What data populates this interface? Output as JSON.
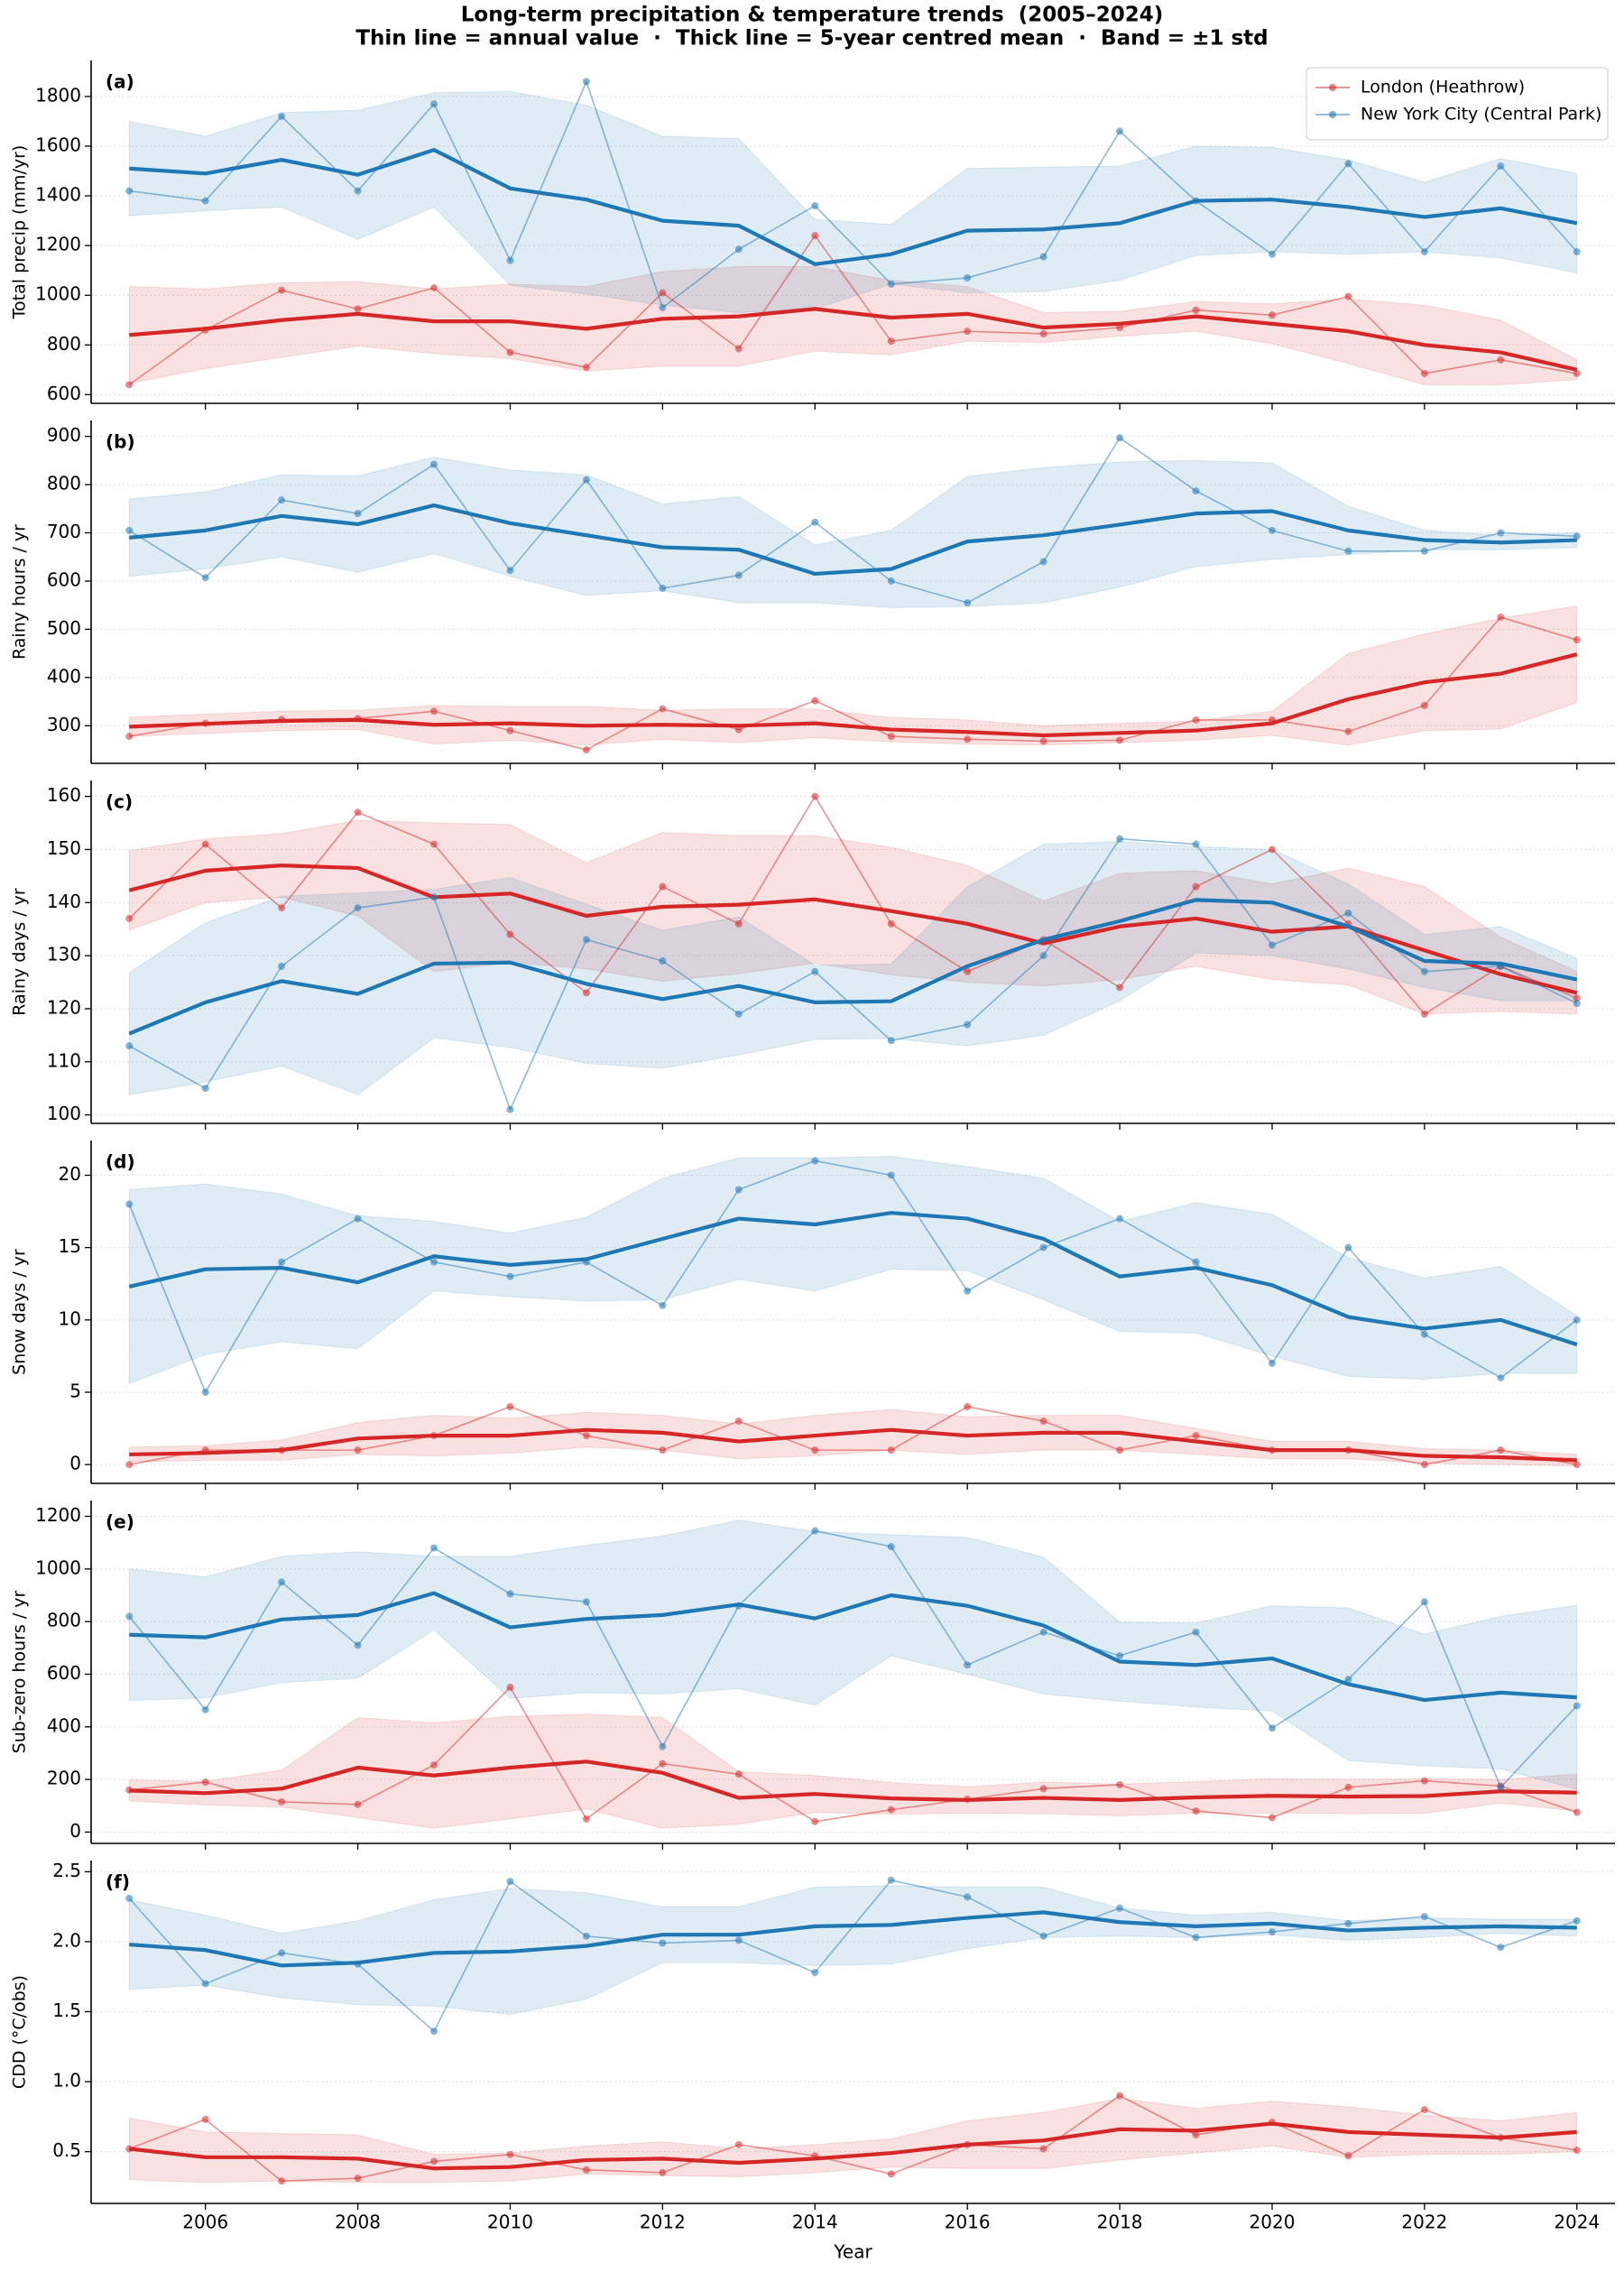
{
  "title": "Long-term precipitation & temperature trends  (2005–2024)",
  "subtitle": "Thin line = annual value  ·  Thick line = 5-year centred mean  ·  Band = ±1 std",
  "chart_data": [
    {
      "type": "line",
      "panel_label": "(a)",
      "ylabel": "Total precip (mm/yr)",
      "legend": "upper right",
      "grid": true,
      "xticklabels": false,
      "x": [
        2005,
        2006,
        2007,
        2008,
        2009,
        2010,
        2011,
        2012,
        2013,
        2014,
        2015,
        2016,
        2017,
        2018,
        2019,
        2020,
        2021,
        2022,
        2023,
        2024
      ],
      "xlim": [
        2004.5,
        2024.5
      ],
      "xticks": [
        2006,
        2008,
        2010,
        2012,
        2014,
        2016,
        2018,
        2020,
        2022,
        2024
      ],
      "ylim": [
        565,
        1945
      ],
      "yticks": [
        600,
        800,
        1000,
        1200,
        1400,
        1600,
        1800
      ],
      "series": [
        {
          "name": "London (Heathrow)",
          "color": "#d62728",
          "values": [
            640,
            860,
            1020,
            945,
            1030,
            770,
            710,
            1010,
            785,
            1240,
            815,
            855,
            845,
            870,
            940,
            920,
            995,
            685,
            740,
            685
          ],
          "mean": [
            840,
            865,
            900,
            925,
            895,
            895,
            865,
            905,
            915,
            945,
            910,
            925,
            870,
            885,
            915,
            885,
            855,
            800,
            770,
            700
          ],
          "std": [
            195,
            160,
            150,
            130,
            130,
            150,
            170,
            190,
            200,
            170,
            150,
            110,
            60,
            50,
            60,
            80,
            130,
            160,
            130,
            40
          ]
        },
        {
          "name": "New York City (Central Park)",
          "color": "#1f77b4",
          "values": [
            1420,
            1380,
            1720,
            1420,
            1770,
            1140,
            1860,
            950,
            1185,
            1360,
            1045,
            1070,
            1155,
            1660,
            1380,
            1165,
            1530,
            1175,
            1520,
            1175
          ],
          "mean": [
            1510,
            1490,
            1545,
            1485,
            1585,
            1430,
            1385,
            1300,
            1280,
            1125,
            1165,
            1260,
            1265,
            1290,
            1380,
            1385,
            1355,
            1315,
            1350,
            1290
          ],
          "std": [
            190,
            150,
            190,
            260,
            230,
            390,
            380,
            340,
            350,
            180,
            120,
            250,
            250,
            230,
            220,
            210,
            190,
            140,
            200,
            200
          ]
        }
      ]
    },
    {
      "type": "line",
      "panel_label": "(b)",
      "ylabel": "Rainy hours / yr",
      "grid": true,
      "xticklabels": false,
      "x": [
        2005,
        2006,
        2007,
        2008,
        2009,
        2010,
        2011,
        2012,
        2013,
        2014,
        2015,
        2016,
        2017,
        2018,
        2019,
        2020,
        2021,
        2022,
        2023,
        2024
      ],
      "xlim": [
        2004.5,
        2024.5
      ],
      "xticks": [
        2006,
        2008,
        2010,
        2012,
        2014,
        2016,
        2018,
        2020,
        2022,
        2024
      ],
      "ylim": [
        222,
        933
      ],
      "yticks": [
        300,
        400,
        500,
        600,
        700,
        800,
        900
      ],
      "series": [
        {
          "color": "#d62728",
          "values": [
            278,
            305,
            313,
            315,
            330,
            290,
            250,
            335,
            292,
            352,
            278,
            272,
            268,
            270,
            312,
            312,
            288,
            342,
            525,
            478
          ],
          "mean": [
            298,
            304,
            310,
            312,
            302,
            305,
            300,
            302,
            300,
            305,
            292,
            287,
            280,
            285,
            290,
            305,
            355,
            390,
            408,
            448
          ],
          "std": [
            20,
            20,
            20,
            20,
            40,
            35,
            40,
            30,
            35,
            30,
            25,
            25,
            20,
            20,
            20,
            25,
            95,
            100,
            115,
            100
          ]
        },
        {
          "color": "#1f77b4",
          "values": [
            705,
            607,
            768,
            740,
            842,
            622,
            810,
            585,
            612,
            722,
            600,
            555,
            640,
            897,
            787,
            705,
            662,
            662,
            700,
            693
          ],
          "mean": [
            690,
            705,
            735,
            718,
            757,
            720,
            695,
            670,
            665,
            615,
            625,
            682,
            695,
            717,
            740,
            745,
            705,
            685,
            680,
            685
          ],
          "std": [
            80,
            80,
            85,
            100,
            100,
            110,
            125,
            90,
            110,
            60,
            80,
            135,
            140,
            130,
            110,
            100,
            50,
            20,
            15,
            15
          ]
        }
      ]
    },
    {
      "type": "line",
      "panel_label": "(c)",
      "ylabel": "Rainy days / yr",
      "grid": true,
      "xticklabels": false,
      "x": [
        2005,
        2006,
        2007,
        2008,
        2009,
        2010,
        2011,
        2012,
        2013,
        2014,
        2015,
        2016,
        2017,
        2018,
        2019,
        2020,
        2021,
        2022,
        2023,
        2024
      ],
      "xlim": [
        2004.5,
        2024.5
      ],
      "xticks": [
        2006,
        2008,
        2010,
        2012,
        2014,
        2016,
        2018,
        2020,
        2022,
        2024
      ],
      "ylim": [
        98.4,
        163
      ],
      "yticks": [
        100,
        110,
        120,
        130,
        140,
        150,
        160
      ],
      "series": [
        {
          "color": "#d62728",
          "values": [
            137,
            151,
            139,
            157,
            151,
            134,
            123,
            143,
            136,
            160,
            136,
            127,
            133,
            124,
            143,
            150,
            136,
            119,
            128,
            122
          ],
          "mean": [
            142.3,
            146,
            147,
            146.5,
            141,
            141.7,
            137.5,
            139.2,
            139.6,
            140.6,
            138.4,
            136,
            132.3,
            135.5,
            137,
            134.5,
            135.5,
            131,
            126.5,
            123
          ],
          "std": [
            7.5,
            6,
            6,
            9,
            14,
            13,
            10,
            14,
            13,
            12,
            12,
            11,
            8,
            10,
            9,
            9,
            11,
            12,
            7,
            4
          ]
        },
        {
          "color": "#1f77b4",
          "values": [
            113,
            105,
            128,
            139,
            141,
            101,
            133,
            129,
            119,
            127,
            114,
            117,
            130,
            152,
            151,
            132,
            138,
            127,
            128,
            121
          ],
          "mean": [
            115.3,
            121.2,
            125.2,
            122.8,
            128.5,
            128.7,
            124.7,
            121.8,
            124.3,
            121.2,
            121.4,
            128,
            133,
            136.5,
            140.5,
            140,
            135.5,
            129,
            128.5,
            125.5
          ],
          "std": [
            11.5,
            15,
            16,
            19,
            14,
            16,
            15,
            13,
            13,
            7,
            7,
            15,
            18,
            15,
            10,
            10,
            8,
            5,
            7,
            4
          ]
        }
      ]
    },
    {
      "type": "line",
      "panel_label": "(d)",
      "ylabel": "Snow days / yr",
      "grid": true,
      "xticklabels": false,
      "x": [
        2005,
        2006,
        2007,
        2008,
        2009,
        2010,
        2011,
        2012,
        2013,
        2014,
        2015,
        2016,
        2017,
        2018,
        2019,
        2020,
        2021,
        2022,
        2023,
        2024
      ],
      "xlim": [
        2004.5,
        2024.5
      ],
      "xticks": [
        2006,
        2008,
        2010,
        2012,
        2014,
        2016,
        2018,
        2020,
        2022,
        2024
      ],
      "ylim": [
        -1.3,
        22.4
      ],
      "yticks": [
        0,
        5,
        10,
        15,
        20
      ],
      "series": [
        {
          "color": "#d62728",
          "values": [
            0,
            1,
            1,
            1,
            2,
            4,
            2,
            1,
            3,
            1,
            1,
            4,
            3,
            1,
            2,
            1,
            1,
            0,
            1,
            0
          ],
          "mean": [
            0.7,
            0.8,
            1,
            1.8,
            2,
            2,
            2.4,
            2.2,
            1.6,
            2,
            2.4,
            2,
            2.2,
            2.2,
            1.6,
            1,
            1,
            0.6,
            0.5,
            0.3
          ],
          "std": [
            0.5,
            0.5,
            0.7,
            1.1,
            1.4,
            1.2,
            1.2,
            1.2,
            1.2,
            1.4,
            1.4,
            1.3,
            1.2,
            1.2,
            0.9,
            0.6,
            0.6,
            0.5,
            0.5,
            0.4
          ]
        },
        {
          "color": "#1f77b4",
          "values": [
            18,
            5,
            14,
            17,
            14,
            13,
            14,
            11,
            19,
            21,
            20,
            12,
            15,
            17,
            14,
            7,
            15,
            9,
            6,
            10
          ],
          "mean": [
            12.3,
            13.5,
            13.6,
            12.6,
            14.4,
            13.8,
            14.2,
            15.6,
            17,
            16.6,
            17.4,
            17,
            15.6,
            13,
            13.6,
            12.4,
            10.2,
            9.4,
            10,
            8.3
          ],
          "std": [
            6.7,
            5.9,
            5.1,
            4.6,
            2.4,
            2.2,
            2.9,
            4.2,
            4.2,
            4.6,
            3.9,
            3.6,
            4.2,
            3.8,
            4.5,
            4.9,
            4.1,
            3.5,
            3.7,
            2
          ]
        }
      ]
    },
    {
      "type": "line",
      "panel_label": "(e)",
      "ylabel": "Sub-zero hours / yr",
      "grid": true,
      "xticklabels": false,
      "x": [
        2005,
        2006,
        2007,
        2008,
        2009,
        2010,
        2011,
        2012,
        2013,
        2014,
        2015,
        2016,
        2017,
        2018,
        2019,
        2020,
        2021,
        2022,
        2023,
        2024
      ],
      "xlim": [
        2004.5,
        2024.5
      ],
      "xticks": [
        2006,
        2008,
        2010,
        2012,
        2014,
        2016,
        2018,
        2020,
        2022,
        2024
      ],
      "ylim": [
        -43,
        1260
      ],
      "yticks": [
        0,
        200,
        400,
        600,
        800,
        1000,
        1200
      ],
      "series": [
        {
          "color": "#d62728",
          "values": [
            160,
            190,
            115,
            105,
            255,
            550,
            50,
            260,
            220,
            40,
            85,
            125,
            165,
            180,
            80,
            55,
            170,
            195,
            175,
            75
          ],
          "mean": [
            158,
            148,
            165,
            245,
            215,
            245,
            268,
            225,
            130,
            145,
            128,
            122,
            130,
            122,
            132,
            138,
            135,
            137,
            155,
            150
          ],
          "std": [
            40,
            45,
            70,
            190,
            200,
            195,
            180,
            210,
            100,
            70,
            60,
            50,
            60,
            60,
            60,
            65,
            65,
            65,
            45,
            70
          ]
        },
        {
          "color": "#1f77b4",
          "values": [
            820,
            465,
            950,
            710,
            1080,
            905,
            875,
            325,
            860,
            1145,
            1085,
            635,
            760,
            670,
            760,
            395,
            580,
            875,
            170,
            480
          ],
          "mean": [
            750,
            740,
            808,
            825,
            908,
            778,
            810,
            825,
            865,
            812,
            900,
            860,
            785,
            648,
            635,
            660,
            562,
            502,
            530,
            512
          ],
          "std": [
            250,
            230,
            240,
            240,
            140,
            270,
            280,
            300,
            320,
            330,
            230,
            260,
            260,
            150,
            160,
            200,
            290,
            250,
            290,
            350
          ]
        }
      ]
    },
    {
      "type": "line",
      "panel_label": "(f)",
      "ylabel": "CDD (°C/obs)",
      "xlabel": "Year",
      "grid": true,
      "xticklabels": true,
      "x": [
        2005,
        2006,
        2007,
        2008,
        2009,
        2010,
        2011,
        2012,
        2013,
        2014,
        2015,
        2016,
        2017,
        2018,
        2019,
        2020,
        2021,
        2022,
        2023,
        2024
      ],
      "xlim": [
        2004.5,
        2024.5
      ],
      "xticks": [
        2006,
        2008,
        2010,
        2012,
        2014,
        2016,
        2018,
        2020,
        2022,
        2024
      ],
      "ylim": [
        0.13,
        2.58
      ],
      "yticks": [
        0.5,
        {
          "value": 1,
          "label": "1.0"
        },
        1.5,
        {
          "value": 2,
          "label": "2.0"
        },
        2.5
      ],
      "series": [
        {
          "color": "#d62728",
          "values": [
            0.52,
            0.73,
            0.29,
            0.31,
            0.43,
            0.48,
            0.37,
            0.35,
            0.55,
            0.47,
            0.34,
            0.55,
            0.52,
            0.9,
            0.62,
            0.71,
            0.47,
            0.8,
            0.6,
            0.51
          ],
          "mean": [
            0.52,
            0.46,
            0.46,
            0.45,
            0.38,
            0.39,
            0.44,
            0.45,
            0.42,
            0.45,
            0.49,
            0.55,
            0.58,
            0.66,
            0.65,
            0.7,
            0.64,
            0.62,
            0.6,
            0.64
          ],
          "std": [
            0.22,
            0.18,
            0.17,
            0.17,
            0.1,
            0.1,
            0.1,
            0.12,
            0.1,
            0.1,
            0.1,
            0.17,
            0.2,
            0.22,
            0.16,
            0.16,
            0.18,
            0.14,
            0.12,
            0.14
          ]
        },
        {
          "color": "#1f77b4",
          "values": [
            2.31,
            1.7,
            1.92,
            1.84,
            1.36,
            2.43,
            2.04,
            1.99,
            2.01,
            1.78,
            2.44,
            2.32,
            2.04,
            2.24,
            2.03,
            2.07,
            2.13,
            2.18,
            1.96,
            2.15
          ],
          "mean": [
            1.98,
            1.94,
            1.83,
            1.85,
            1.92,
            1.93,
            1.97,
            2.05,
            2.05,
            2.11,
            2.12,
            2.17,
            2.21,
            2.14,
            2.11,
            2.13,
            2.08,
            2.1,
            2.11,
            2.1
          ],
          "std": [
            0.32,
            0.25,
            0.23,
            0.3,
            0.38,
            0.45,
            0.38,
            0.2,
            0.2,
            0.28,
            0.28,
            0.22,
            0.18,
            0.1,
            0.08,
            0.08,
            0.07,
            0.07,
            0.05,
            0.06
          ]
        }
      ]
    }
  ]
}
